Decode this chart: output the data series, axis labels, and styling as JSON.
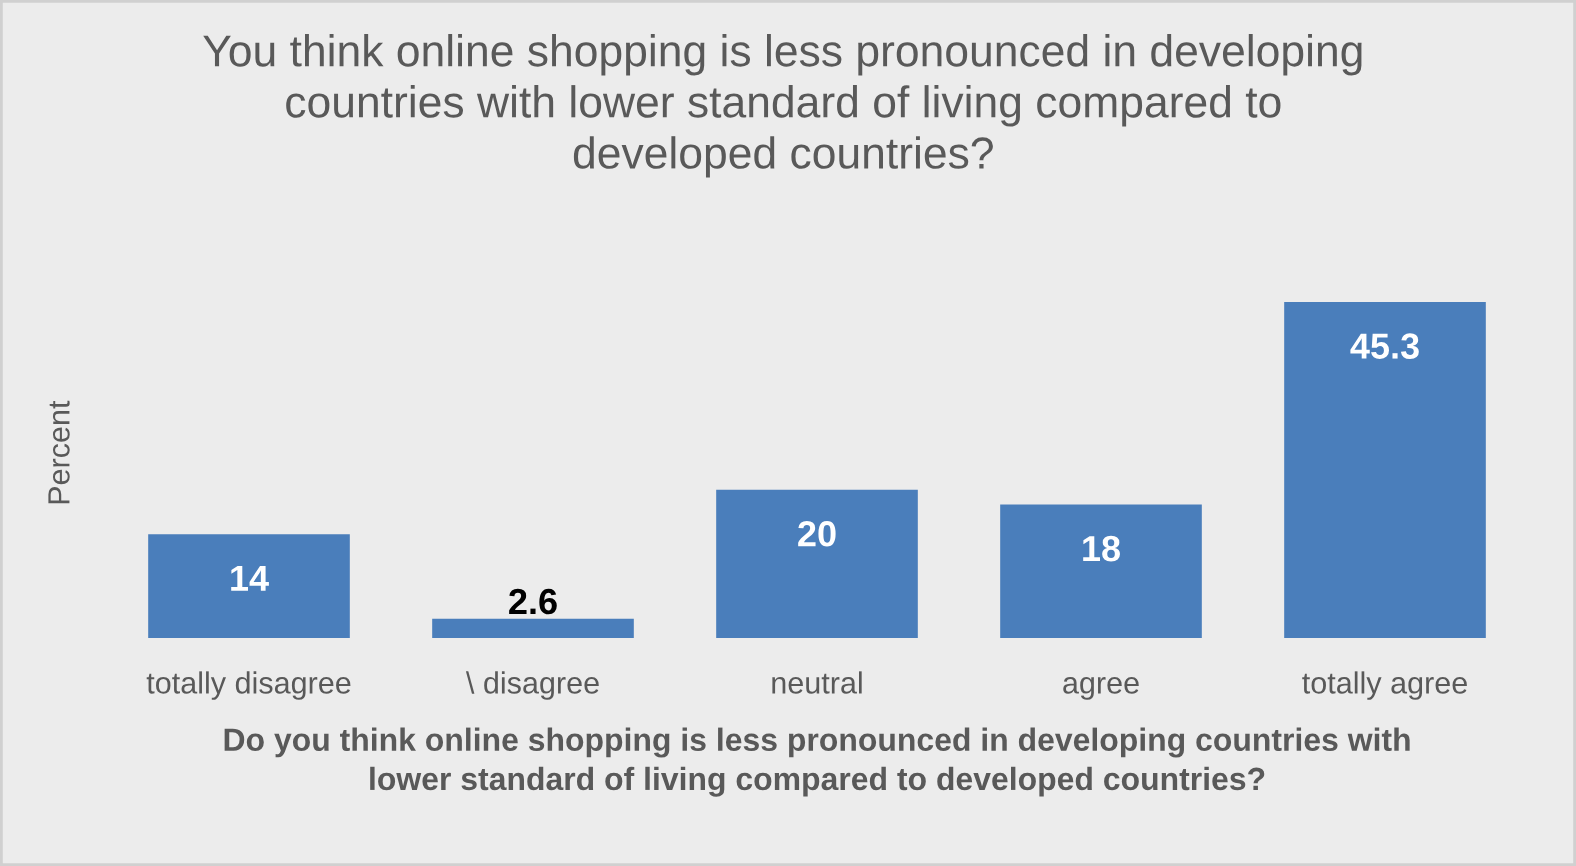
{
  "chart_data": {
    "type": "bar",
    "title": "You think online shopping is less pronounced in developing countries with lower standard of living compared to developed countries?",
    "xlabel": "Do you think online shopping is less pronounced in developing countries with lower standard of living compared to developed countries?",
    "ylabel": "Percent",
    "categories": [
      "totally disagree",
      "\\ disagree",
      "neutral",
      "agree",
      "totally agree"
    ],
    "values": [
      14,
      2.6,
      20,
      18,
      45.3
    ],
    "color": "#4a7ebb",
    "data_labels": true
  }
}
